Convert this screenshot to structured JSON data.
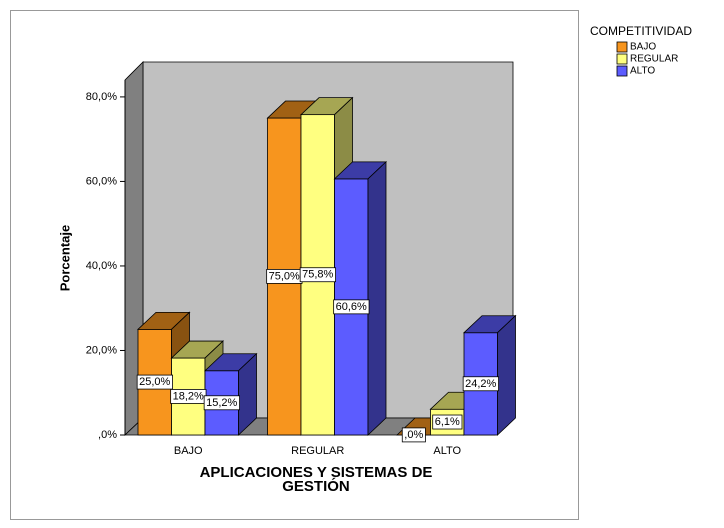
{
  "chart_data": {
    "type": "bar3d",
    "y_label": "Porcentaje",
    "x_label": "APLICACIONES Y SISTEMAS DE GESTIÓN",
    "legend_title": "COMPETITIVIDAD",
    "legend": "outside-right",
    "categories": [
      "BAJO",
      "REGULAR",
      "ALTO"
    ],
    "series": [
      {
        "name": "BAJO",
        "color": "#f7951e",
        "values": [
          25.0,
          75.0,
          0
        ],
        "value_labels": [
          "25,0%",
          "75,0%",
          ",0%"
        ]
      },
      {
        "name": "REGULAR",
        "color": "#ffff80",
        "values": [
          18.2,
          75.8,
          6.1
        ],
        "value_labels": [
          "18,2%",
          "75,8%",
          "6,1%"
        ]
      },
      {
        "name": "ALTO",
        "color": "#5c5cff",
        "values": [
          15.2,
          60.6,
          24.2
        ],
        "value_labels": [
          "15,2%",
          "60,6%",
          "24,2%"
        ]
      }
    ],
    "ylim": [
      0,
      84
    ],
    "yticks": [
      {
        "value": 0,
        "label": ",0%"
      },
      {
        "value": 20,
        "label": "20,0%"
      },
      {
        "value": 40,
        "label": "40,0%"
      },
      {
        "value": 60,
        "label": "60,0%"
      },
      {
        "value": 80,
        "label": "80,0%"
      }
    ]
  }
}
